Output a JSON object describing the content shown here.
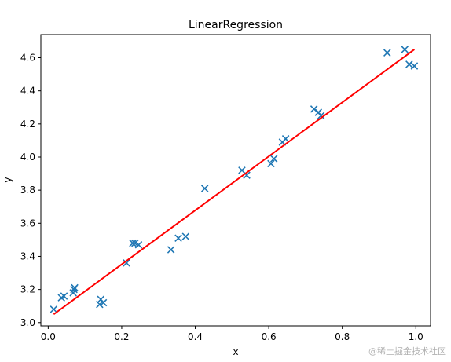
{
  "watermark": "@稀土掘金技术社区",
  "chart_data": {
    "type": "scatter",
    "title": "LinearRegression",
    "xlabel": "x",
    "ylabel": "y",
    "xlim": [
      -0.02,
      1.04
    ],
    "ylim": [
      2.98,
      4.74
    ],
    "x_ticks": [
      {
        "value": 0.0,
        "label": "0.0"
      },
      {
        "value": 0.2,
        "label": "0.2"
      },
      {
        "value": 0.4,
        "label": "0.4"
      },
      {
        "value": 0.6,
        "label": "0.6"
      },
      {
        "value": 0.8,
        "label": "0.8"
      },
      {
        "value": 1.0,
        "label": "1.0"
      }
    ],
    "y_ticks": [
      {
        "value": 3.0,
        "label": "3.0"
      },
      {
        "value": 3.2,
        "label": "3.2"
      },
      {
        "value": 3.4,
        "label": "3.4"
      },
      {
        "value": 3.6,
        "label": "3.6"
      },
      {
        "value": 3.8,
        "label": "3.8"
      },
      {
        "value": 4.0,
        "label": "4.0"
      },
      {
        "value": 4.2,
        "label": "4.2"
      },
      {
        "value": 4.4,
        "label": "4.4"
      },
      {
        "value": 4.6,
        "label": "4.6"
      }
    ],
    "series": [
      {
        "kind": "scatter",
        "marker": "x",
        "color": "#1f77b4",
        "points": [
          {
            "x": 0.015,
            "y": 3.08
          },
          {
            "x": 0.036,
            "y": 3.15
          },
          {
            "x": 0.043,
            "y": 3.16
          },
          {
            "x": 0.068,
            "y": 3.18
          },
          {
            "x": 0.07,
            "y": 3.2
          },
          {
            "x": 0.072,
            "y": 3.21
          },
          {
            "x": 0.14,
            "y": 3.11
          },
          {
            "x": 0.143,
            "y": 3.14
          },
          {
            "x": 0.15,
            "y": 3.12
          },
          {
            "x": 0.213,
            "y": 3.36
          },
          {
            "x": 0.23,
            "y": 3.48
          },
          {
            "x": 0.236,
            "y": 3.48
          },
          {
            "x": 0.246,
            "y": 3.47
          },
          {
            "x": 0.334,
            "y": 3.44
          },
          {
            "x": 0.354,
            "y": 3.51
          },
          {
            "x": 0.374,
            "y": 3.52
          },
          {
            "x": 0.426,
            "y": 3.81
          },
          {
            "x": 0.527,
            "y": 3.92
          },
          {
            "x": 0.54,
            "y": 3.89
          },
          {
            "x": 0.606,
            "y": 3.96
          },
          {
            "x": 0.614,
            "y": 3.99
          },
          {
            "x": 0.637,
            "y": 4.09
          },
          {
            "x": 0.646,
            "y": 4.11
          },
          {
            "x": 0.723,
            "y": 4.29
          },
          {
            "x": 0.735,
            "y": 4.27
          },
          {
            "x": 0.742,
            "y": 4.25
          },
          {
            "x": 0.922,
            "y": 4.63
          },
          {
            "x": 0.97,
            "y": 4.65
          },
          {
            "x": 0.982,
            "y": 4.56
          },
          {
            "x": 0.996,
            "y": 4.55
          }
        ]
      },
      {
        "kind": "line",
        "color": "#ff0000",
        "points": [
          {
            "x": 0.015,
            "y": 3.05
          },
          {
            "x": 0.996,
            "y": 4.65
          }
        ]
      }
    ],
    "grid": false,
    "legend": "none"
  }
}
